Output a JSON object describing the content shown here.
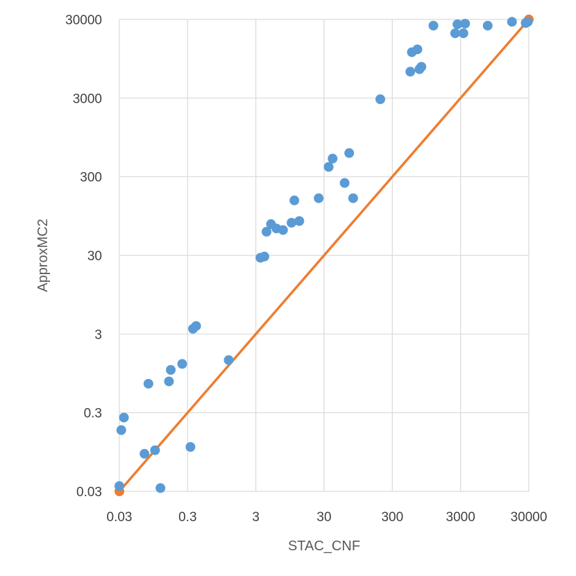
{
  "chart_data": {
    "type": "scatter",
    "xlabel": "STAC_CNF",
    "ylabel": "ApproxMC2",
    "x_scale": "log",
    "y_scale": "log",
    "xlim": [
      0.03,
      30000
    ],
    "ylim": [
      0.03,
      30000
    ],
    "x_ticks": [
      0.03,
      0.3,
      3,
      30,
      300,
      3000,
      30000
    ],
    "y_ticks": [
      0.03,
      0.3,
      3,
      30,
      300,
      3000,
      30000
    ],
    "x_tick_labels": [
      "0.03",
      "0.3",
      "3",
      "30",
      "300",
      "3000",
      "30000"
    ],
    "y_tick_labels": [
      "0.03",
      "0.3",
      "3",
      "30",
      "300",
      "3000",
      "30000"
    ],
    "grid": true,
    "legend": "none",
    "colors": {
      "points": "#5b9bd5",
      "reference": "#ed7d31"
    },
    "series": [
      {
        "type": "scatter",
        "points": [
          [
            0.03,
            0.035
          ],
          [
            0.032,
            0.18
          ],
          [
            0.035,
            0.26
          ],
          [
            0.07,
            0.09
          ],
          [
            0.08,
            0.7
          ],
          [
            0.1,
            0.1
          ],
          [
            0.12,
            0.033
          ],
          [
            0.16,
            0.75
          ],
          [
            0.17,
            1.05
          ],
          [
            0.25,
            1.25
          ],
          [
            0.33,
            0.11
          ],
          [
            0.36,
            3.5
          ],
          [
            0.4,
            3.8
          ],
          [
            1.2,
            1.4
          ],
          [
            3.5,
            28
          ],
          [
            4.0,
            29
          ],
          [
            4.3,
            60
          ],
          [
            5.0,
            75
          ],
          [
            6.0,
            66
          ],
          [
            7.5,
            63
          ],
          [
            10,
            78
          ],
          [
            11,
            150
          ],
          [
            13,
            82
          ],
          [
            25,
            160
          ],
          [
            35,
            400
          ],
          [
            40,
            510
          ],
          [
            60,
            250
          ],
          [
            70,
            600
          ],
          [
            80,
            160
          ],
          [
            200,
            2900
          ],
          [
            550,
            6500
          ],
          [
            580,
            11500
          ],
          [
            700,
            12500
          ],
          [
            750,
            7000
          ],
          [
            800,
            7500
          ],
          [
            1200,
            25000
          ],
          [
            2500,
            20000
          ],
          [
            2700,
            26000
          ],
          [
            3300,
            20000
          ],
          [
            3500,
            26500
          ],
          [
            7500,
            25000
          ],
          [
            17000,
            28000
          ],
          [
            27000,
            27000
          ],
          [
            29000,
            28000
          ]
        ]
      },
      {
        "type": "line",
        "points": [
          [
            0.03,
            0.03
          ],
          [
            30000,
            30000
          ]
        ]
      }
    ]
  }
}
